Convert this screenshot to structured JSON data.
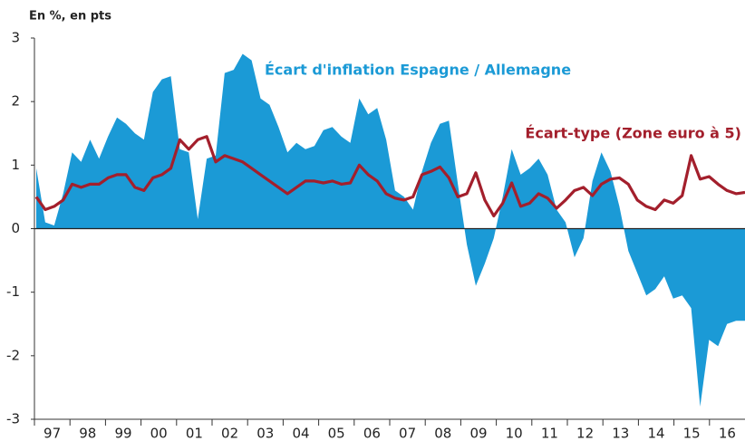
{
  "chart_data": {
    "type": "line",
    "y_label": "En %, en pts",
    "categories": [
      "97",
      null,
      null,
      null,
      "98",
      null,
      null,
      null,
      "99",
      null,
      null,
      null,
      "00",
      null,
      null,
      null,
      "01",
      null,
      null,
      null,
      "02",
      null,
      null,
      null,
      "03",
      null,
      null,
      null,
      "04",
      null,
      null,
      null,
      "05",
      null,
      null,
      null,
      "06",
      null,
      null,
      null,
      "07",
      null,
      null,
      null,
      "08",
      null,
      null,
      null,
      "09",
      null,
      null,
      null,
      "10",
      null,
      null,
      null,
      "11",
      null,
      null,
      null,
      "12",
      null,
      null,
      null,
      "13",
      null,
      null,
      null,
      "14",
      null,
      null,
      null,
      "15",
      null,
      null,
      null,
      "16",
      null,
      null,
      null
    ],
    "series": [
      {
        "name": "Écart d'inflation Espagne / Allemagne",
        "type": "area",
        "color": "#1b9ad6",
        "values": [
          0.95,
          0.1,
          0.05,
          0.55,
          1.2,
          1.05,
          1.4,
          1.1,
          1.45,
          1.75,
          1.65,
          1.5,
          1.4,
          2.15,
          2.35,
          2.4,
          1.25,
          1.2,
          0.15,
          1.1,
          1.15,
          2.45,
          2.5,
          2.75,
          2.65,
          2.05,
          1.95,
          1.6,
          1.2,
          1.35,
          1.25,
          1.3,
          1.55,
          1.6,
          1.45,
          1.35,
          2.05,
          1.8,
          1.9,
          1.4,
          0.6,
          0.5,
          0.3,
          0.9,
          1.35,
          1.65,
          1.7,
          0.7,
          -0.25,
          -0.9,
          -0.55,
          -0.15,
          0.5,
          1.25,
          0.85,
          0.95,
          1.1,
          0.85,
          0.3,
          0.1,
          -0.45,
          -0.15,
          0.75,
          1.2,
          0.9,
          0.35,
          -0.35,
          -0.7,
          -1.05,
          -0.95,
          -0.75,
          -1.1,
          -1.05,
          -1.25,
          -2.8,
          -1.75,
          -1.85,
          -1.5,
          -1.45,
          -1.45
        ]
      },
      {
        "name": "Écart-type (Zone euro à 5)",
        "type": "line",
        "color": "#a31f2c",
        "values": [
          0.5,
          0.3,
          0.35,
          0.45,
          0.7,
          0.65,
          0.7,
          0.7,
          0.8,
          0.85,
          0.85,
          0.65,
          0.6,
          0.8,
          0.85,
          0.95,
          1.4,
          1.25,
          1.4,
          1.45,
          1.05,
          1.15,
          1.1,
          1.05,
          0.95,
          0.85,
          0.75,
          0.65,
          0.55,
          0.65,
          0.75,
          0.75,
          0.72,
          0.75,
          0.7,
          0.72,
          1.0,
          0.85,
          0.75,
          0.55,
          0.48,
          0.45,
          0.5,
          0.85,
          0.9,
          0.97,
          0.8,
          0.5,
          0.55,
          0.88,
          0.45,
          0.2,
          0.4,
          0.72,
          0.35,
          0.4,
          0.55,
          0.48,
          0.32,
          0.45,
          0.6,
          0.65,
          0.52,
          0.7,
          0.78,
          0.8,
          0.7,
          0.45,
          0.35,
          0.3,
          0.45,
          0.4,
          0.52,
          1.15,
          0.78,
          0.82,
          0.7,
          0.6,
          0.55,
          0.57
        ]
      }
    ],
    "ylim": [
      -3,
      3
    ],
    "yticks": [
      -3,
      -2,
      -1,
      0,
      1,
      2,
      3
    ],
    "grid": false
  }
}
